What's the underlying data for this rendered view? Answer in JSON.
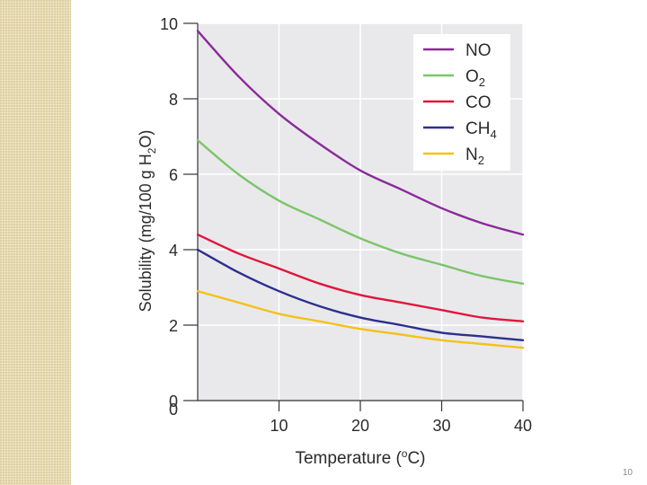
{
  "slide": {
    "page_number": "10"
  },
  "chart_data": {
    "type": "line",
    "title": "",
    "xlabel": "Temperature",
    "xlabel_unit_open": "(",
    "xlabel_unit_sup": "o",
    "xlabel_unit_close": "C)",
    "ylabel_pre": "Solubility (mg/100 g H",
    "ylabel_sub": "2",
    "ylabel_post": "O)",
    "xlim": [
      0,
      40
    ],
    "ylim": [
      0,
      10
    ],
    "x_ticks": [
      10,
      20,
      30,
      40
    ],
    "y_ticks": [
      0,
      2,
      4,
      6,
      8,
      10
    ],
    "grid": true,
    "legend_position": "top-right",
    "series": [
      {
        "name": "NO",
        "label_main": "NO",
        "label_sub": "",
        "color": "#8b2a9b",
        "x": [
          0,
          5,
          10,
          15,
          20,
          25,
          30,
          35,
          40
        ],
        "values": [
          9.8,
          8.6,
          7.6,
          6.8,
          6.1,
          5.6,
          5.1,
          4.7,
          4.4
        ]
      },
      {
        "name": "O2",
        "label_main": "O",
        "label_sub": "2",
        "color": "#7cc56b",
        "x": [
          0,
          5,
          10,
          15,
          20,
          25,
          30,
          35,
          40
        ],
        "values": [
          6.9,
          6.0,
          5.3,
          4.8,
          4.3,
          3.9,
          3.6,
          3.3,
          3.1
        ]
      },
      {
        "name": "CO",
        "label_main": "CO",
        "label_sub": "",
        "color": "#e0163c",
        "x": [
          0,
          5,
          10,
          15,
          20,
          25,
          30,
          35,
          40
        ],
        "values": [
          4.4,
          3.9,
          3.5,
          3.1,
          2.8,
          2.6,
          2.4,
          2.2,
          2.1
        ]
      },
      {
        "name": "CH4",
        "label_main": "CH",
        "label_sub": "4",
        "color": "#2c2f8f",
        "x": [
          0,
          5,
          10,
          15,
          20,
          25,
          30,
          35,
          40
        ],
        "values": [
          4.0,
          3.4,
          2.9,
          2.5,
          2.2,
          2.0,
          1.8,
          1.7,
          1.6
        ]
      },
      {
        "name": "N2",
        "label_main": "N",
        "label_sub": "2",
        "color": "#f3c21a",
        "x": [
          0,
          5,
          10,
          15,
          20,
          25,
          30,
          35,
          40
        ],
        "values": [
          2.9,
          2.6,
          2.3,
          2.1,
          1.9,
          1.75,
          1.6,
          1.5,
          1.4
        ]
      }
    ]
  }
}
